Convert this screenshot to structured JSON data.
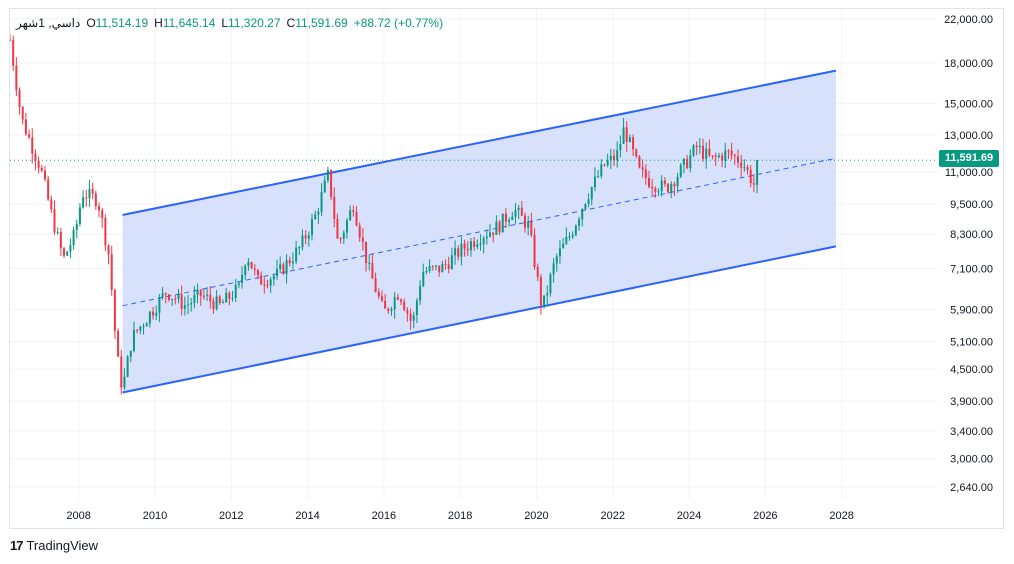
{
  "header": {
    "symbol_label": "داسي, 1شهر",
    "open_key": "O",
    "open": "11,514.19",
    "high_key": "H",
    "high": "11,645.14",
    "low_key": "L",
    "low": "11,320.27",
    "close_key": "C",
    "close": "11,591.69",
    "change": "+88.72 (+0.77%)"
  },
  "price_tag": "11,591.69",
  "brand": {
    "logo": "17",
    "name": "TradingView"
  },
  "colors": {
    "up": "#089981",
    "down": "#f23645",
    "channel_line": "#2962ff",
    "channel_fill": "#d1dcfb",
    "last_price_line": "#089981"
  },
  "chart_data": {
    "type": "candlestick",
    "y_scale": "log",
    "y_ticks": [
      "22,000.00",
      "18,000.00",
      "15,000.00",
      "13,000.00",
      "11,000.00",
      "9,500.00",
      "8,300.00",
      "7,100.00",
      "5,900.00",
      "5,100.00",
      "4,500.00",
      "3,900.00",
      "3,400.00",
      "3,000.00",
      "2,640.00"
    ],
    "y_tick_values": [
      22000,
      18000,
      15000,
      13000,
      11000,
      9500,
      8300,
      7100,
      5900,
      5100,
      4500,
      3900,
      3400,
      3000,
      2640
    ],
    "x_ticks": [
      "2008",
      "2010",
      "2012",
      "2014",
      "2016",
      "2018",
      "2020",
      "2022",
      "2024",
      "2026",
      "2028"
    ],
    "x_tick_values": [
      2008,
      2010,
      2012,
      2014,
      2016,
      2018,
      2020,
      2022,
      2024,
      2026,
      2028
    ],
    "x_range": [
      2006.2,
      2030.5
    ],
    "y_range": [
      2500,
      23000
    ],
    "last_close": 11591.69,
    "channel": {
      "upper": [
        [
          2009.15,
          9050
        ],
        [
          2027.85,
          17400
        ]
      ],
      "middle": [
        [
          2009.15,
          6000
        ],
        [
          2027.85,
          11700
        ]
      ],
      "lower": [
        [
          2009.15,
          4050
        ],
        [
          2027.85,
          7850
        ]
      ]
    },
    "close_path": [
      [
        2006.2,
        20000
      ],
      [
        2006.5,
        14000
      ],
      [
        2007.0,
        11200
      ],
      [
        2007.3,
        9000
      ],
      [
        2007.6,
        7400
      ],
      [
        2007.9,
        8300
      ],
      [
        2008.1,
        10000
      ],
      [
        2008.5,
        9700
      ],
      [
        2008.8,
        7500
      ],
      [
        2009.0,
        4800
      ],
      [
        2009.15,
        4100
      ],
      [
        2009.4,
        5200
      ],
      [
        2009.8,
        5700
      ],
      [
        2010.3,
        6400
      ],
      [
        2010.8,
        6000
      ],
      [
        2011.2,
        6300
      ],
      [
        2011.7,
        6000
      ],
      [
        2012.2,
        6500
      ],
      [
        2012.4,
        7600
      ],
      [
        2012.7,
        6700
      ],
      [
        2013.2,
        6900
      ],
      [
        2013.8,
        7800
      ],
      [
        2014.2,
        9000
      ],
      [
        2014.55,
        10900
      ],
      [
        2014.8,
        7900
      ],
      [
        2015.2,
        9500
      ],
      [
        2015.6,
        7100
      ],
      [
        2016.0,
        5800
      ],
      [
        2016.4,
        6400
      ],
      [
        2016.75,
        5500
      ],
      [
        2017.0,
        7000
      ],
      [
        2017.5,
        7100
      ],
      [
        2018.0,
        7700
      ],
      [
        2018.5,
        8200
      ],
      [
        2019.0,
        8600
      ],
      [
        2019.4,
        9300
      ],
      [
        2019.8,
        8600
      ],
      [
        2020.15,
        5900
      ],
      [
        2020.5,
        7400
      ],
      [
        2020.9,
        8300
      ],
      [
        2021.3,
        9800
      ],
      [
        2021.8,
        11400
      ],
      [
        2022.1,
        11800
      ],
      [
        2022.3,
        13400
      ],
      [
        2022.7,
        11000
      ],
      [
        2023.0,
        10500
      ],
      [
        2023.4,
        10200
      ],
      [
        2023.8,
        11100
      ],
      [
        2024.2,
        12300
      ],
      [
        2024.6,
        11600
      ],
      [
        2025.0,
        12000
      ],
      [
        2025.4,
        11500
      ],
      [
        2025.7,
        10400
      ],
      [
        2025.85,
        11591.69
      ]
    ]
  }
}
